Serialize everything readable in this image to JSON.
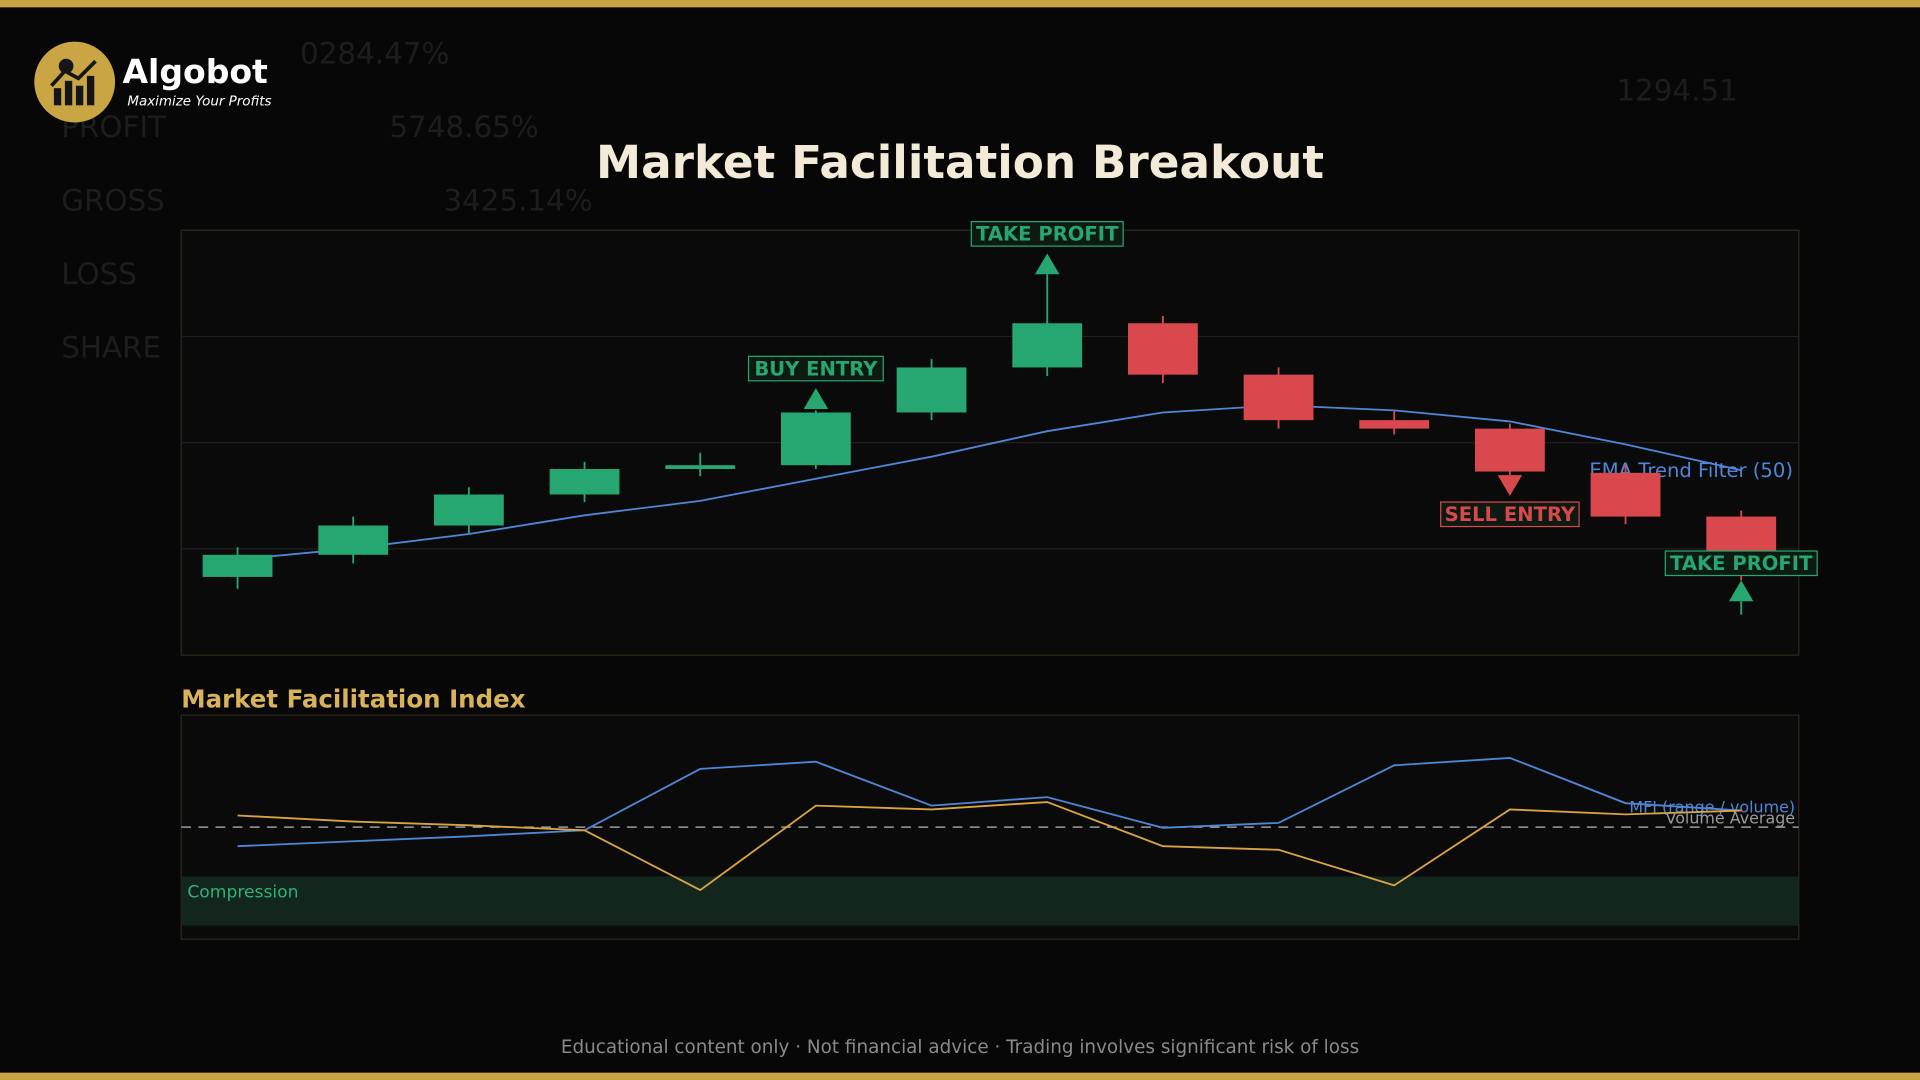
{
  "header": {
    "brand": "Algobot",
    "tagline": "Maximize Your Profits"
  },
  "background_text": [
    "0284.47%",
    "PROFIT",
    "5748.65%",
    "GROSS",
    "3425.14%",
    "LOSS",
    "SHARE",
    "1294.51"
  ],
  "chart_data": [
    {
      "type": "candlestick",
      "title": "Market Facilitation Breakout",
      "categories": [
        null,
        null,
        null,
        null,
        null,
        null,
        null,
        null,
        null,
        null,
        null,
        null,
        null,
        null
      ],
      "open": [
        18.4,
        23.6,
        30.5,
        37.8,
        43.8,
        44.7,
        57.1,
        67.7,
        78.1,
        66.0,
        55.3,
        53.3,
        42.9,
        32.6
      ],
      "high": [
        25.4,
        32.6,
        39.5,
        45.5,
        47.6,
        57.6,
        69.7,
        78.7,
        79.8,
        67.7,
        57.6,
        54.5,
        44.7,
        34.0
      ],
      "low": [
        15.6,
        21.6,
        28.5,
        36.0,
        42.1,
        43.8,
        55.3,
        65.7,
        64.0,
        53.3,
        51.9,
        42.4,
        30.8,
        17.6
      ],
      "close": [
        23.6,
        30.5,
        37.8,
        43.8,
        44.7,
        57.1,
        67.7,
        78.1,
        66.0,
        55.3,
        53.3,
        43.2,
        32.6,
        18.7
      ],
      "up_color": "#26a671",
      "down_color": "#d9484d",
      "ylim": [
        0,
        100
      ],
      "yticks": [
        25,
        50,
        75
      ],
      "grid": true,
      "overlay": {
        "name": "EMA Trend Filter (50)",
        "color": "#4f86d6",
        "values": [
          22.5,
          25.1,
          28.5,
          32.9,
          36.3,
          41.5,
          46.7,
          52.7,
          57.1,
          58.8,
          57.6,
          55.0,
          49.6,
          43.5
        ]
      },
      "annotations": [
        {
          "text": "BUY ENTRY",
          "color": "#26a671"
        },
        {
          "text": "TAKE PROFIT",
          "color": "#26a671"
        },
        {
          "text": "SELL ENTRY",
          "color": "#d9484d"
        },
        {
          "text": "TAKE PROFIT",
          "color": "#26a671"
        }
      ]
    },
    {
      "type": "line",
      "title": "Market Facilitation Index",
      "categories": [
        null,
        null,
        null,
        null,
        null,
        null,
        null,
        null,
        null,
        null,
        null,
        null,
        null,
        null
      ],
      "series": [
        {
          "name": "MFI (range / volume)",
          "color": "#4f86d6",
          "values": [
            41.5,
            43.7,
            45.9,
            48.6,
            76.0,
            79.2,
            59.6,
            63.4,
            49.7,
            51.9,
            77.6,
            80.9,
            60.7,
            57.4
          ]
        },
        {
          "color": "#d9a441",
          "values": [
            55.2,
            52.5,
            50.8,
            48.6,
            21.9,
            59.6,
            57.9,
            61.2,
            41.5,
            39.9,
            24.0,
            57.9,
            55.7,
            57.4
          ]
        }
      ],
      "reference_line": {
        "name": "Volume Average",
        "value": 50,
        "color": "#9a9a9a"
      },
      "zones": [
        {
          "label": "Compression",
          "range": [
            6,
            28
          ],
          "color": "#13261d"
        }
      ],
      "ylim": [
        0,
        100
      ]
    }
  ],
  "footer": "Educational content only  ·  Not financial advice  ·  Trading involves significant risk of loss"
}
